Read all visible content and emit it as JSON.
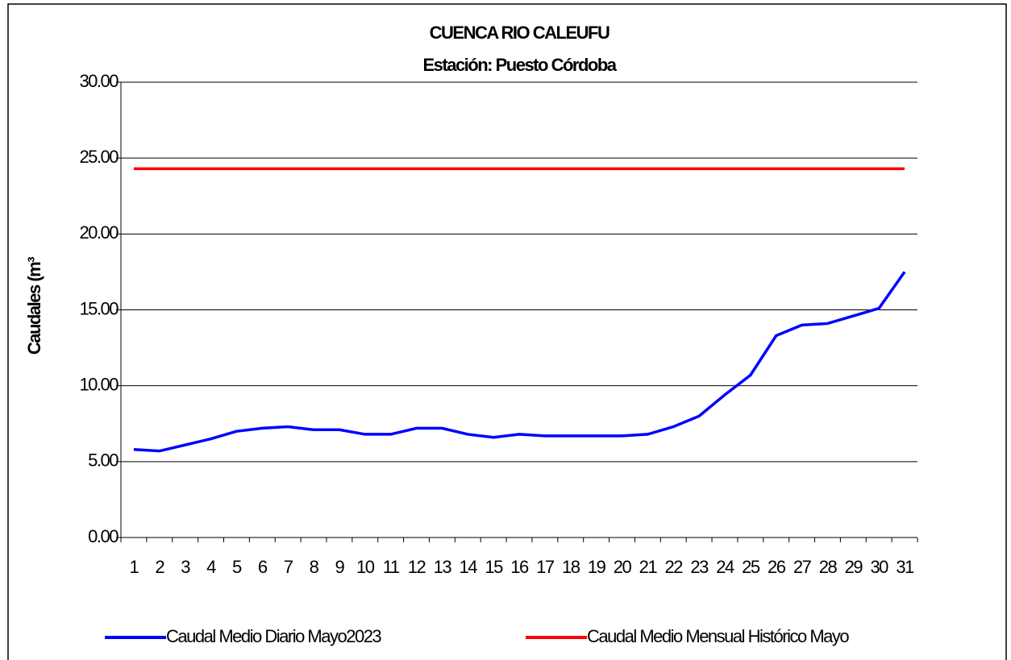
{
  "chart_data": {
    "type": "line",
    "title": "CUENCA RIO CALEUFU",
    "subtitle": "Estación: Puesto Córdoba",
    "y_label": "Caudales (m³",
    "categories": [
      "1",
      "2",
      "3",
      "4",
      "5",
      "6",
      "7",
      "8",
      "9",
      "10",
      "11",
      "12",
      "13",
      "14",
      "15",
      "16",
      "17",
      "18",
      "19",
      "20",
      "21",
      "22",
      "23",
      "24",
      "25",
      "26",
      "27",
      "28",
      "29",
      "30",
      "31"
    ],
    "series": [
      {
        "name": "Caudal Medio Diario Mayo2023",
        "color": "#0000ff",
        "values": [
          5.8,
          5.7,
          6.1,
          6.5,
          7.0,
          7.2,
          7.3,
          7.1,
          7.1,
          6.8,
          6.8,
          7.2,
          7.2,
          6.8,
          6.6,
          6.8,
          6.7,
          6.7,
          6.7,
          6.7,
          6.8,
          7.3,
          8.0,
          9.4,
          10.7,
          13.3,
          14.0,
          14.1,
          14.6,
          15.1,
          17.5
        ]
      },
      {
        "name": "Caudal Medio Mensual Histórico Mayo",
        "color": "#ff0000",
        "values": [
          24.3,
          24.3,
          24.3,
          24.3,
          24.3,
          24.3,
          24.3,
          24.3,
          24.3,
          24.3,
          24.3,
          24.3,
          24.3,
          24.3,
          24.3,
          24.3,
          24.3,
          24.3,
          24.3,
          24.3,
          24.3,
          24.3,
          24.3,
          24.3,
          24.3,
          24.3,
          24.3,
          24.3,
          24.3,
          24.3,
          24.3
        ]
      }
    ],
    "ylim": [
      0,
      30
    ],
    "yticks": [
      {
        "value": 0,
        "label": "0.00"
      },
      {
        "value": 5,
        "label": "5.00"
      },
      {
        "value": 10,
        "label": "10.00"
      },
      {
        "value": 15,
        "label": "15.00"
      },
      {
        "value": 20,
        "label": "20.00"
      },
      {
        "value": 25,
        "label": "25.00"
      },
      {
        "value": 30,
        "label": "30.00"
      }
    ],
    "grid": true,
    "legend": "bottom"
  }
}
